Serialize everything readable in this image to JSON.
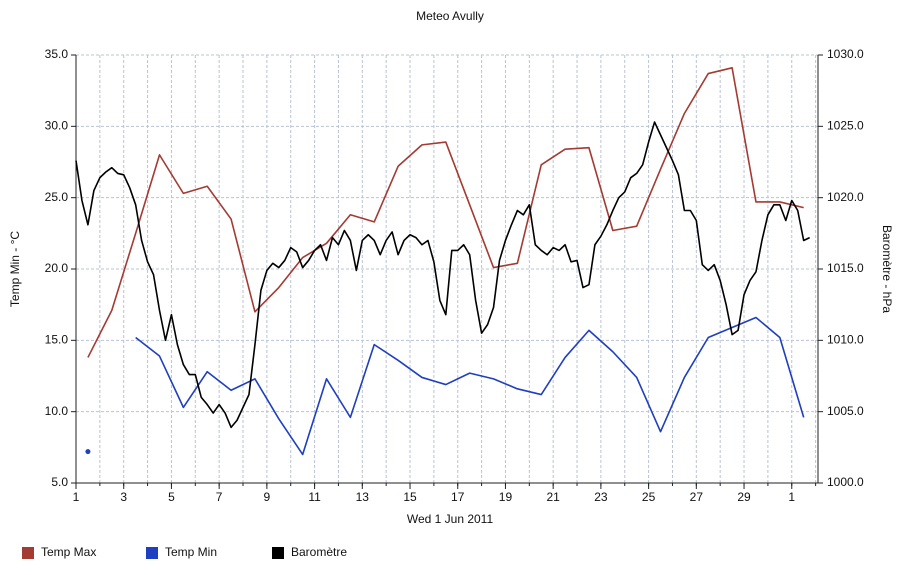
{
  "chart_data": {
    "type": "line",
    "title": "Meteo  Avully",
    "xlabel": "Wed 1 Jun 2011",
    "ylabel": "Temp Min - °C",
    "y2label": "Baromètre - hPa",
    "xlim": [
      1,
      32.1
    ],
    "xticks": [
      1,
      3,
      5,
      7,
      9,
      11,
      13,
      15,
      17,
      19,
      21,
      23,
      25,
      27,
      29,
      {
        "value": 31,
        "label": "1"
      }
    ],
    "xminor_ticks": [
      1,
      2,
      3,
      4,
      5,
      6,
      7,
      8,
      9,
      10,
      11,
      12,
      13,
      14,
      15,
      16,
      17,
      18,
      19,
      20,
      21,
      22,
      23,
      24,
      25,
      26,
      27,
      28,
      29,
      30,
      31,
      32
    ],
    "ylim": [
      5,
      35
    ],
    "yticks": [
      {
        "value": 5,
        "label": "5.0"
      },
      {
        "value": 10,
        "label": "10.0"
      },
      {
        "value": 15,
        "label": "15.0"
      },
      {
        "value": 20,
        "label": "20.0"
      },
      {
        "value": 25,
        "label": "25.0"
      },
      {
        "value": 30,
        "label": "30.0"
      },
      {
        "value": 35,
        "label": "35.0"
      }
    ],
    "y2lim": [
      1000,
      1030
    ],
    "y2ticks": [
      {
        "value": 1000,
        "label": "1000.0"
      },
      {
        "value": 1005,
        "label": "1005.0"
      },
      {
        "value": 1010,
        "label": "1010.0"
      },
      {
        "value": 1015,
        "label": "1015.0"
      },
      {
        "value": 1020,
        "label": "1020.0"
      },
      {
        "value": 1025,
        "label": "1025.0"
      },
      {
        "value": 1030,
        "label": "1030.0"
      }
    ],
    "grid": true,
    "legend": "bottom",
    "series": [
      {
        "name": "Temp Max",
        "color": "#a33b32",
        "x": [
          1.5,
          2.5,
          3.5,
          4.5,
          5.5,
          6.5,
          7.5,
          8.5,
          9.5,
          10.5,
          11.5,
          12.5,
          13.5,
          14.5,
          15.5,
          16.5,
          17.5,
          18.5,
          19.5,
          20.5,
          21.5,
          22.5,
          23.5,
          24.5,
          25.5,
          26.5,
          27.5,
          28.5,
          29.5,
          30.5,
          31.5
        ],
        "values": [
          13.8,
          17.1,
          22.5,
          28.0,
          25.3,
          25.8,
          23.5,
          17.0,
          18.7,
          20.8,
          21.8,
          23.8,
          23.3,
          27.2,
          28.7,
          28.9,
          24.5,
          20.1,
          20.4,
          27.3,
          28.4,
          28.5,
          22.7,
          23.0,
          27.0,
          30.9,
          33.7,
          34.1,
          24.7,
          24.7,
          24.3
        ]
      },
      {
        "name": "Temp Min",
        "color": "#1e3fc0",
        "x": [
          1.5,
          2.5,
          3.5,
          4.5,
          5.5,
          6.5,
          7.5,
          8.5,
          9.5,
          10.5,
          11.5,
          12.5,
          13.5,
          14.5,
          15.5,
          16.5,
          17.5,
          18.5,
          19.5,
          20.5,
          21.5,
          22.5,
          23.5,
          24.5,
          25.5,
          26.5,
          27.5,
          28.5,
          29.5,
          30.5,
          31.5
        ],
        "values": [
          7.2,
          null,
          15.2,
          13.9,
          10.3,
          12.8,
          11.5,
          12.3,
          9.5,
          7.0,
          12.3,
          9.6,
          14.7,
          13.6,
          12.4,
          11.9,
          12.7,
          12.3,
          11.6,
          11.2,
          13.8,
          15.7,
          14.2,
          12.4,
          8.6,
          12.4,
          15.2,
          15.9,
          16.6,
          15.2,
          9.6
        ]
      },
      {
        "name": "Baromètre",
        "color": "#000000",
        "axis": "y2",
        "x": [
          1,
          1.25,
          1.5,
          1.75,
          2,
          2.25,
          2.5,
          2.75,
          3,
          3.25,
          3.5,
          3.75,
          4,
          4.25,
          4.5,
          4.75,
          5,
          5.25,
          5.5,
          5.75,
          6,
          6.25,
          6.5,
          6.75,
          7,
          7.25,
          7.5,
          7.75,
          8,
          8.25,
          8.5,
          8.75,
          9,
          9.25,
          9.5,
          9.75,
          10,
          10.25,
          10.5,
          10.75,
          11,
          11.25,
          11.5,
          11.75,
          12,
          12.25,
          12.5,
          12.75,
          13,
          13.25,
          13.5,
          13.75,
          14,
          14.25,
          14.5,
          14.75,
          15,
          15.25,
          15.5,
          15.75,
          16,
          16.25,
          16.5,
          16.75,
          17,
          17.25,
          17.5,
          17.75,
          18,
          18.25,
          18.5,
          18.75,
          19,
          19.25,
          19.5,
          19.75,
          20,
          20.25,
          20.5,
          20.75,
          21,
          21.25,
          21.5,
          21.75,
          22,
          22.25,
          22.5,
          22.75,
          23,
          23.25,
          23.5,
          23.75,
          24,
          24.25,
          24.5,
          24.75,
          25,
          25.25,
          25.5,
          25.75,
          26,
          26.25,
          26.5,
          26.75,
          27,
          27.25,
          27.5,
          27.75,
          28,
          28.25,
          28.5,
          28.75,
          29,
          29.25,
          29.5,
          29.75,
          30,
          30.25,
          30.5,
          30.75,
          31,
          31.25,
          31.5,
          31.75
        ],
        "values": [
          1022.6,
          1019.8,
          1018.1,
          1020.5,
          1021.4,
          1021.8,
          1022.1,
          1021.7,
          1021.6,
          1020.7,
          1019.5,
          1017.0,
          1015.5,
          1014.6,
          1012.1,
          1010.0,
          1011.8,
          1009.7,
          1008.3,
          1007.6,
          1007.6,
          1006.0,
          1005.5,
          1004.9,
          1005.5,
          1004.9,
          1003.9,
          1004.4,
          1005.3,
          1006.2,
          1009.7,
          1013.5,
          1014.9,
          1015.4,
          1015.1,
          1015.6,
          1016.5,
          1016.2,
          1015.1,
          1015.6,
          1016.3,
          1016.7,
          1015.6,
          1017.2,
          1016.7,
          1017.7,
          1017.0,
          1014.9,
          1017.0,
          1017.4,
          1017.0,
          1016.0,
          1017.0,
          1017.6,
          1016.0,
          1017.0,
          1017.4,
          1017.2,
          1016.7,
          1017.0,
          1015.5,
          1012.8,
          1011.8,
          1016.3,
          1016.3,
          1016.7,
          1016.0,
          1012.8,
          1010.5,
          1011.1,
          1012.3,
          1015.6,
          1017.0,
          1018.1,
          1019.1,
          1018.8,
          1019.5,
          1016.7,
          1016.3,
          1016.0,
          1016.5,
          1016.3,
          1016.7,
          1015.5,
          1015.6,
          1013.7,
          1013.9,
          1016.7,
          1017.3,
          1018.1,
          1019.1,
          1020.0,
          1020.4,
          1021.4,
          1021.7,
          1022.3,
          1023.9,
          1025.3,
          1024.4,
          1023.5,
          1022.6,
          1021.6,
          1019.1,
          1019.1,
          1018.4,
          1015.3,
          1014.9,
          1015.3,
          1014.2,
          1012.5,
          1010.4,
          1010.7,
          1013.2,
          1014.2,
          1014.8,
          1017.0,
          1018.8,
          1019.5,
          1019.5,
          1018.4,
          1019.8,
          1019.1,
          1017.0,
          1017.2
        ]
      }
    ]
  }
}
